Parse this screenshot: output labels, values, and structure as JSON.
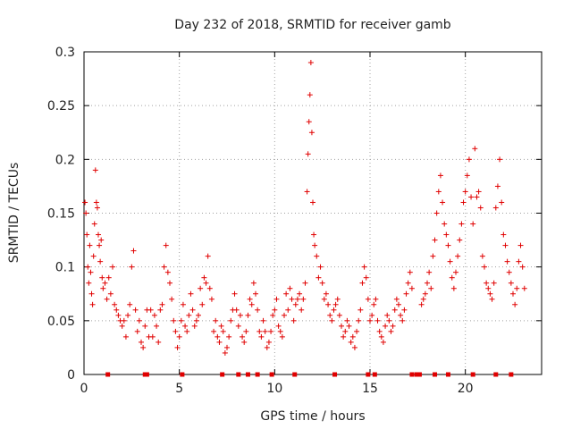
{
  "chart_data": {
    "type": "scatter",
    "title": "Day 232 of 2018, SRMTID for receiver gamb",
    "xlabel": "GPS time / hours",
    "ylabel": "SRMTID / TECUs",
    "xlim": [
      0,
      24
    ],
    "ylim": [
      0,
      0.3
    ],
    "x_ticks": [
      0,
      5,
      10,
      15,
      20
    ],
    "y_ticks": [
      0,
      0.05,
      0.1,
      0.15,
      0.2,
      0.25,
      0.3
    ],
    "x_tick_labels": [
      "0",
      "5",
      "10",
      "15",
      "20"
    ],
    "y_tick_labels": [
      "0",
      "0.05",
      "0.1",
      "0.15",
      "0.2",
      "0.25",
      "0.3"
    ],
    "grid": true,
    "marker": "plus",
    "color": "#e00000",
    "series": [
      {
        "name": "SRMTID",
        "points": [
          [
            0.05,
            0.16
          ],
          [
            0.1,
            0.15
          ],
          [
            0.15,
            0.13
          ],
          [
            0.2,
            0.1
          ],
          [
            0.25,
            0.085
          ],
          [
            0.3,
            0.12
          ],
          [
            0.35,
            0.095
          ],
          [
            0.4,
            0.075
          ],
          [
            0.45,
            0.065
          ],
          [
            0.5,
            0.11
          ],
          [
            0.55,
            0.14
          ],
          [
            0.6,
            0.19
          ],
          [
            0.65,
            0.16
          ],
          [
            0.7,
            0.155
          ],
          [
            0.75,
            0.13
          ],
          [
            0.8,
            0.12
          ],
          [
            0.85,
            0.105
          ],
          [
            0.9,
            0.125
          ],
          [
            0.95,
            0.09
          ],
          [
            1.0,
            0.08
          ],
          [
            1.1,
            0.085
          ],
          [
            1.2,
            0.07
          ],
          [
            1.3,
            0.09
          ],
          [
            1.4,
            0.075
          ],
          [
            1.5,
            0.1
          ],
          [
            1.6,
            0.065
          ],
          [
            1.7,
            0.06
          ],
          [
            1.8,
            0.055
          ],
          [
            1.9,
            0.05
          ],
          [
            2.0,
            0.045
          ],
          [
            2.1,
            0.05
          ],
          [
            2.2,
            0.035
          ],
          [
            2.3,
            0.055
          ],
          [
            2.4,
            0.065
          ],
          [
            2.5,
            0.1
          ],
          [
            2.6,
            0.115
          ],
          [
            2.7,
            0.06
          ],
          [
            2.8,
            0.04
          ],
          [
            2.9,
            0.05
          ],
          [
            3.0,
            0.03
          ],
          [
            3.1,
            0.025
          ],
          [
            3.2,
            0.045
          ],
          [
            3.3,
            0.06
          ],
          [
            3.4,
            0.035
          ],
          [
            3.5,
            0.06
          ],
          [
            3.6,
            0.035
          ],
          [
            3.7,
            0.055
          ],
          [
            3.8,
            0.045
          ],
          [
            3.9,
            0.03
          ],
          [
            4.0,
            0.06
          ],
          [
            4.1,
            0.065
          ],
          [
            4.2,
            0.1
          ],
          [
            4.3,
            0.12
          ],
          [
            4.4,
            0.095
          ],
          [
            4.5,
            0.085
          ],
          [
            4.6,
            0.07
          ],
          [
            4.7,
            0.05
          ],
          [
            4.8,
            0.04
          ],
          [
            4.9,
            0.025
          ],
          [
            5.0,
            0.035
          ],
          [
            5.1,
            0.05
          ],
          [
            5.2,
            0.065
          ],
          [
            5.3,
            0.045
          ],
          [
            5.4,
            0.04
          ],
          [
            5.5,
            0.055
          ],
          [
            5.6,
            0.075
          ],
          [
            5.7,
            0.06
          ],
          [
            5.8,
            0.045
          ],
          [
            5.9,
            0.05
          ],
          [
            6.0,
            0.055
          ],
          [
            6.1,
            0.08
          ],
          [
            6.2,
            0.065
          ],
          [
            6.3,
            0.09
          ],
          [
            6.4,
            0.085
          ],
          [
            6.5,
            0.11
          ],
          [
            6.6,
            0.08
          ],
          [
            6.7,
            0.07
          ],
          [
            6.8,
            0.04
          ],
          [
            6.9,
            0.05
          ],
          [
            7.0,
            0.035
          ],
          [
            7.1,
            0.03
          ],
          [
            7.2,
            0.045
          ],
          [
            7.3,
            0.04
          ],
          [
            7.4,
            0.02
          ],
          [
            7.5,
            0.025
          ],
          [
            7.6,
            0.035
          ],
          [
            7.7,
            0.05
          ],
          [
            7.8,
            0.06
          ],
          [
            7.9,
            0.075
          ],
          [
            8.0,
            0.06
          ],
          [
            8.1,
            0.045
          ],
          [
            8.2,
            0.055
          ],
          [
            8.3,
            0.035
          ],
          [
            8.4,
            0.03
          ],
          [
            8.5,
            0.04
          ],
          [
            8.6,
            0.055
          ],
          [
            8.7,
            0.07
          ],
          [
            8.8,
            0.065
          ],
          [
            8.9,
            0.085
          ],
          [
            9.0,
            0.075
          ],
          [
            9.1,
            0.06
          ],
          [
            9.2,
            0.04
          ],
          [
            9.3,
            0.035
          ],
          [
            9.4,
            0.05
          ],
          [
            9.5,
            0.04
          ],
          [
            9.6,
            0.025
          ],
          [
            9.7,
            0.03
          ],
          [
            9.8,
            0.04
          ],
          [
            9.9,
            0.055
          ],
          [
            10.0,
            0.06
          ],
          [
            10.1,
            0.07
          ],
          [
            10.2,
            0.045
          ],
          [
            10.3,
            0.04
          ],
          [
            10.4,
            0.035
          ],
          [
            10.5,
            0.055
          ],
          [
            10.6,
            0.075
          ],
          [
            10.7,
            0.06
          ],
          [
            10.8,
            0.08
          ],
          [
            10.9,
            0.07
          ],
          [
            11.0,
            0.05
          ],
          [
            11.1,
            0.065
          ],
          [
            11.2,
            0.07
          ],
          [
            11.3,
            0.075
          ],
          [
            11.4,
            0.06
          ],
          [
            11.5,
            0.07
          ],
          [
            11.6,
            0.085
          ],
          [
            11.7,
            0.17
          ],
          [
            11.75,
            0.205
          ],
          [
            11.8,
            0.235
          ],
          [
            11.85,
            0.26
          ],
          [
            11.9,
            0.29
          ],
          [
            11.95,
            0.225
          ],
          [
            12.0,
            0.16
          ],
          [
            12.05,
            0.13
          ],
          [
            12.1,
            0.12
          ],
          [
            12.2,
            0.11
          ],
          [
            12.3,
            0.09
          ],
          [
            12.4,
            0.1
          ],
          [
            12.5,
            0.085
          ],
          [
            12.6,
            0.07
          ],
          [
            12.7,
            0.075
          ],
          [
            12.8,
            0.065
          ],
          [
            12.9,
            0.055
          ],
          [
            13.0,
            0.05
          ],
          [
            13.1,
            0.06
          ],
          [
            13.2,
            0.065
          ],
          [
            13.3,
            0.07
          ],
          [
            13.4,
            0.055
          ],
          [
            13.5,
            0.045
          ],
          [
            13.6,
            0.035
          ],
          [
            13.7,
            0.04
          ],
          [
            13.8,
            0.05
          ],
          [
            13.9,
            0.045
          ],
          [
            14.0,
            0.03
          ],
          [
            14.1,
            0.035
          ],
          [
            14.2,
            0.025
          ],
          [
            14.3,
            0.04
          ],
          [
            14.4,
            0.05
          ],
          [
            14.5,
            0.06
          ],
          [
            14.6,
            0.085
          ],
          [
            14.7,
            0.1
          ],
          [
            14.8,
            0.09
          ],
          [
            14.9,
            0.07
          ],
          [
            15.0,
            0.05
          ],
          [
            15.1,
            0.055
          ],
          [
            15.2,
            0.065
          ],
          [
            15.3,
            0.07
          ],
          [
            15.4,
            0.05
          ],
          [
            15.5,
            0.04
          ],
          [
            15.6,
            0.035
          ],
          [
            15.7,
            0.03
          ],
          [
            15.8,
            0.045
          ],
          [
            15.9,
            0.055
          ],
          [
            16.0,
            0.05
          ],
          [
            16.1,
            0.04
          ],
          [
            16.2,
            0.045
          ],
          [
            16.3,
            0.06
          ],
          [
            16.4,
            0.07
          ],
          [
            16.5,
            0.065
          ],
          [
            16.6,
            0.055
          ],
          [
            16.7,
            0.05
          ],
          [
            16.8,
            0.06
          ],
          [
            16.9,
            0.075
          ],
          [
            17.0,
            0.085
          ],
          [
            17.1,
            0.095
          ],
          [
            17.2,
            0.08
          ],
          [
            17.7,
            0.065
          ],
          [
            17.8,
            0.07
          ],
          [
            17.9,
            0.075
          ],
          [
            18.0,
            0.085
          ],
          [
            18.1,
            0.095
          ],
          [
            18.2,
            0.08
          ],
          [
            18.3,
            0.11
          ],
          [
            18.4,
            0.125
          ],
          [
            18.5,
            0.15
          ],
          [
            18.6,
            0.17
          ],
          [
            18.7,
            0.185
          ],
          [
            18.8,
            0.16
          ],
          [
            18.9,
            0.14
          ],
          [
            19.0,
            0.13
          ],
          [
            19.1,
            0.12
          ],
          [
            19.2,
            0.105
          ],
          [
            19.3,
            0.09
          ],
          [
            19.4,
            0.08
          ],
          [
            19.5,
            0.095
          ],
          [
            19.6,
            0.11
          ],
          [
            19.7,
            0.125
          ],
          [
            19.8,
            0.14
          ],
          [
            19.9,
            0.16
          ],
          [
            20.0,
            0.17
          ],
          [
            20.1,
            0.185
          ],
          [
            20.2,
            0.2
          ],
          [
            20.3,
            0.165
          ],
          [
            20.4,
            0.14
          ],
          [
            20.5,
            0.21
          ],
          [
            20.6,
            0.165
          ],
          [
            20.7,
            0.17
          ],
          [
            20.8,
            0.155
          ],
          [
            20.9,
            0.11
          ],
          [
            21.0,
            0.1
          ],
          [
            21.1,
            0.085
          ],
          [
            21.2,
            0.08
          ],
          [
            21.3,
            0.075
          ],
          [
            21.4,
            0.07
          ],
          [
            21.5,
            0.085
          ],
          [
            21.6,
            0.155
          ],
          [
            21.7,
            0.175
          ],
          [
            21.8,
            0.2
          ],
          [
            21.9,
            0.16
          ],
          [
            22.0,
            0.13
          ],
          [
            22.1,
            0.12
          ],
          [
            22.2,
            0.105
          ],
          [
            22.3,
            0.095
          ],
          [
            22.4,
            0.085
          ],
          [
            22.5,
            0.075
          ],
          [
            22.6,
            0.065
          ],
          [
            22.7,
            0.08
          ],
          [
            22.8,
            0.105
          ],
          [
            22.9,
            0.12
          ],
          [
            23.0,
            0.1
          ],
          [
            23.1,
            0.08
          ]
        ]
      }
    ],
    "data_gap_markers": [
      1.25,
      3.2,
      3.3,
      5.15,
      7.25,
      8.1,
      8.6,
      9.1,
      9.85,
      11.05,
      13.15,
      14.9,
      15.25,
      17.2,
      17.45,
      17.6,
      18.4,
      19.1,
      20.4,
      21.6,
      22.4
    ]
  }
}
